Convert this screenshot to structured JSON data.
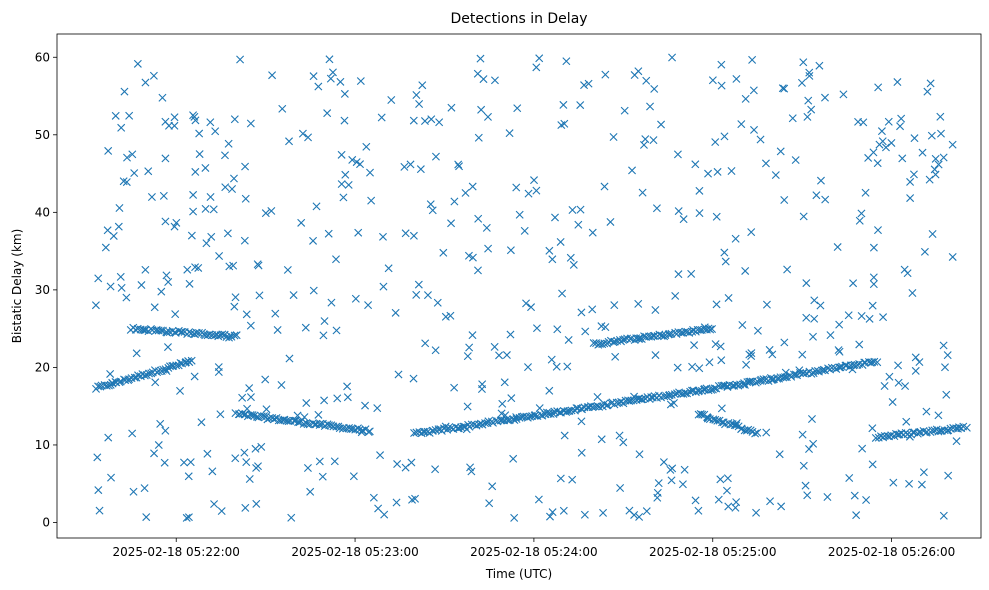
{
  "chart_data": {
    "type": "scatter",
    "title": "Detections in Delay",
    "xlabel": "Time (UTC)",
    "ylabel": "Bistatic Delay (km)",
    "xlim": [
      "2025-02-18 05:21:20",
      "2025-02-18 05:26:30"
    ],
    "ylim": [
      -2,
      63
    ],
    "x_ticks": [
      "2025-02-18 05:22:00",
      "2025-02-18 05:23:00",
      "2025-02-18 05:24:00",
      "2025-02-18 05:25:00",
      "2025-02-18 05:26:00"
    ],
    "y_ticks": [
      0,
      10,
      20,
      30,
      40,
      50,
      60
    ],
    "marker": "x",
    "color": "#1f77b4",
    "grid": false,
    "x_range": [
      "2025-02-18 05:21:33",
      "2025-02-18 05:26:22"
    ],
    "tracks": [
      {
        "x_start": "2025-02-18 05:21:33",
        "x_end": "2025-02-18 05:22:05",
        "y_start": 17.3,
        "y_end": 20.8
      },
      {
        "x_start": "2025-02-18 05:22:20",
        "x_end": "2025-02-18 05:23:05",
        "y_start": 14.0,
        "y_end": 11.8
      },
      {
        "x_start": "2025-02-18 05:23:20",
        "x_end": "2025-02-18 05:25:20",
        "y_start": 11.4,
        "y_end": 18.5
      },
      {
        "x_start": "2025-02-18 05:25:20",
        "x_end": "2025-02-18 05:25:55",
        "y_start": 18.5,
        "y_end": 20.8
      },
      {
        "x_start": "2025-02-18 05:24:55",
        "x_end": "2025-02-18 05:25:15",
        "y_start": 14.0,
        "y_end": 11.5
      },
      {
        "x_start": "2025-02-18 05:25:55",
        "x_end": "2025-02-18 05:26:25",
        "y_start": 11.0,
        "y_end": 12.3
      },
      {
        "x_start": "2025-02-18 05:21:45",
        "x_end": "2025-02-18 05:22:20",
        "y_start": 25.0,
        "y_end": 24.0
      },
      {
        "x_start": "2025-02-18 05:24:20",
        "x_end": "2025-02-18 05:25:00",
        "y_start": 23.0,
        "y_end": 25.0
      }
    ],
    "noise": {
      "count": 600,
      "y_min": 0.5,
      "y_max": 60
    }
  }
}
